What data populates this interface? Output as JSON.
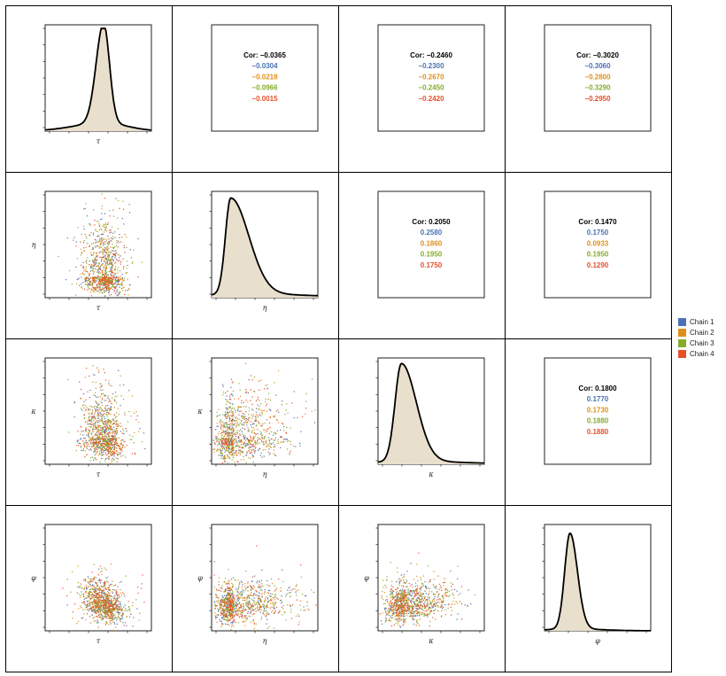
{
  "variables": [
    "τ",
    "η",
    "κ",
    "φ"
  ],
  "legend": [
    {
      "label": "Chain 1",
      "color": "#4a73b5"
    },
    {
      "label": "Chain 2",
      "color": "#e0901a"
    },
    {
      "label": "Chain 3",
      "color": "#86ac2b"
    },
    {
      "label": "Chain 4",
      "color": "#e8502a"
    }
  ],
  "colors": {
    "overall": "#000000",
    "density_fill": "#e8dfcc"
  },
  "chart_data": {
    "type": "scatter-matrix",
    "variables": [
      "τ",
      "η",
      "κ",
      "φ"
    ],
    "correlations": [
      {
        "pair": [
          "τ",
          "η"
        ],
        "overall": "Cor: −0.0365",
        "chains": [
          "−0.0304",
          "−0.0218",
          "−0.0966",
          "−0.0015"
        ]
      },
      {
        "pair": [
          "τ",
          "κ"
        ],
        "overall": "Cor: −0.2460",
        "chains": [
          "−0.2300",
          "−0.2670",
          "−0.2450",
          "−0.2420"
        ]
      },
      {
        "pair": [
          "τ",
          "φ"
        ],
        "overall": "Cor: −0.3020",
        "chains": [
          "−0.3060",
          "−0.2800",
          "−0.3290",
          "−0.2950"
        ]
      },
      {
        "pair": [
          "η",
          "κ"
        ],
        "overall": "Cor: 0.2050",
        "chains": [
          "0.2580",
          "0.1860",
          "0.1950",
          "0.1750"
        ]
      },
      {
        "pair": [
          "η",
          "φ"
        ],
        "overall": "Cor: 0.1470",
        "chains": [
          "0.1750",
          "0.0933",
          "0.1950",
          "0.1290"
        ]
      },
      {
        "pair": [
          "κ",
          "φ"
        ],
        "overall": "Cor: 0.1800",
        "chains": [
          "0.1770",
          "0.1730",
          "0.1880",
          "0.1880"
        ]
      }
    ],
    "densities": [
      {
        "var": "τ",
        "peak_x": 0.55,
        "peak_height": 0.97,
        "left_sd": 0.07,
        "right_sd": 0.055,
        "tail_weight": 0.08
      },
      {
        "var": "η",
        "peak_x": 0.18,
        "peak_height": 0.93,
        "left_sd": 0.05,
        "right_sd": 0.17,
        "tail_weight": 0.04
      },
      {
        "var": "κ",
        "peak_x": 0.22,
        "peak_height": 0.95,
        "left_sd": 0.06,
        "right_sd": 0.14,
        "tail_weight": 0.03
      },
      {
        "var": "φ",
        "peak_x": 0.24,
        "peak_height": 0.93,
        "left_sd": 0.05,
        "right_sd": 0.07,
        "tail_weight": 0.02
      }
    ],
    "scatter_centers": {
      "τ": 0.55,
      "η": 0.2,
      "κ": 0.25,
      "φ": 0.25
    }
  }
}
